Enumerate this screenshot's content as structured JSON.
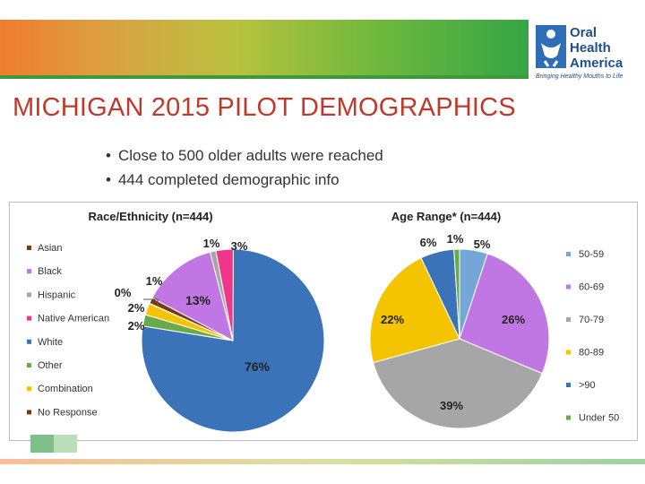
{
  "header": {
    "title": "MICHIGAN 2015 PILOT DEMOGRAPHICS",
    "logo_line1": "Oral",
    "logo_line2": "Health",
    "logo_line3": "America",
    "logo_tagline": "Bringing Healthy Mouths to Life"
  },
  "bullets": [
    "Close to 500 older adults were reached",
    "444 completed demographic info"
  ],
  "colors": {
    "title": "#c0392b",
    "blue": "#3a73b8",
    "purple": "#c177e3",
    "gray": "#a6a6a6",
    "pink": "#f0368a",
    "green": "#6aaa4a",
    "gold": "#f5c400",
    "brown": "#7a3b10",
    "lightblue": "#74a7d8"
  },
  "chart_data": [
    {
      "type": "pie",
      "title": "Race/Ethnicity (n=444)",
      "legend_position": "left",
      "categories": [
        "Asian",
        "Black",
        "Hispanic",
        "Native American",
        "White",
        "Other",
        "Combination",
        "No Response"
      ],
      "values": [
        0,
        13,
        1,
        3,
        76,
        2,
        2,
        1
      ],
      "labels": [
        "0%",
        "13%",
        "1%",
        "3%",
        "76%",
        "2%",
        "2%",
        "1%"
      ]
    },
    {
      "type": "pie",
      "title": "Age Range* (n=444)",
      "legend_position": "right",
      "categories": [
        "50-59",
        "60-69",
        "70-79",
        "80-89",
        ">90",
        "Under 50"
      ],
      "values": [
        5,
        26,
        39,
        22,
        6,
        1
      ],
      "labels": [
        "5%",
        "26%",
        "39%",
        "22%",
        "6%",
        "1%"
      ]
    }
  ]
}
